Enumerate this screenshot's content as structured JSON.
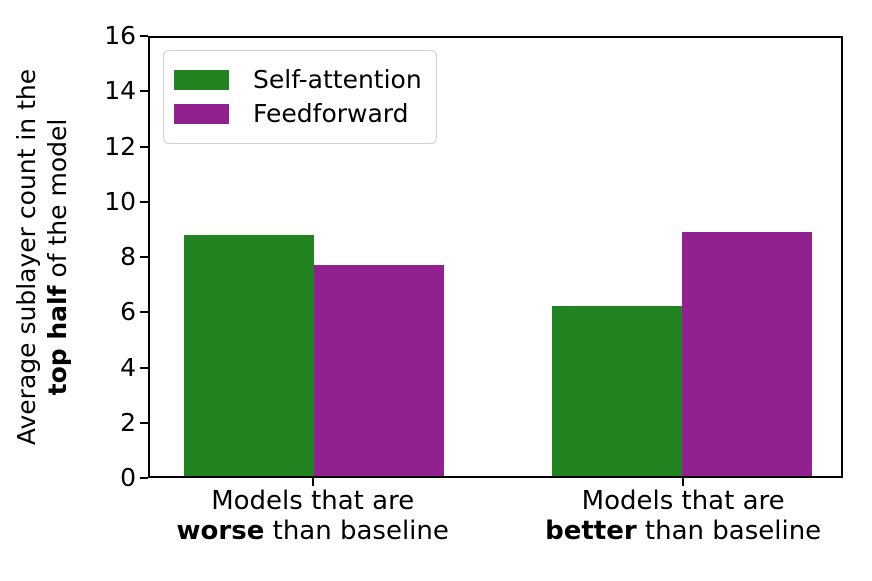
{
  "figure": {
    "background": "#ffffff",
    "axis_color": "#000000",
    "text_color": "#000000"
  },
  "chart_data": {
    "type": "bar",
    "title": "",
    "xlabel": "",
    "ylabel": "Average sublayer count in the top half of the model",
    "ylabel_line1": "Average sublayer count in the",
    "ylabel_line2_bold": "top half",
    "ylabel_line2_rest": " of the model",
    "ylim": [
      0,
      16
    ],
    "yticks": [
      0,
      2,
      4,
      6,
      8,
      10,
      12,
      14,
      16
    ],
    "grid": false,
    "legend_position": "upper left",
    "categories": [
      "Models that are worse than baseline",
      "Models that are better than baseline"
    ],
    "category_labels": [
      {
        "line1": "Models that are",
        "bold": "worse",
        "rest": " than baseline"
      },
      {
        "line1": "Models that are",
        "bold": "better",
        "rest": " than baseline"
      }
    ],
    "series": [
      {
        "name": "Self-attention",
        "color": "#228321",
        "values": [
          8.8,
          6.2
        ]
      },
      {
        "name": "Feedforward",
        "color": "#91218F",
        "values": [
          7.7,
          8.9
        ]
      }
    ]
  }
}
